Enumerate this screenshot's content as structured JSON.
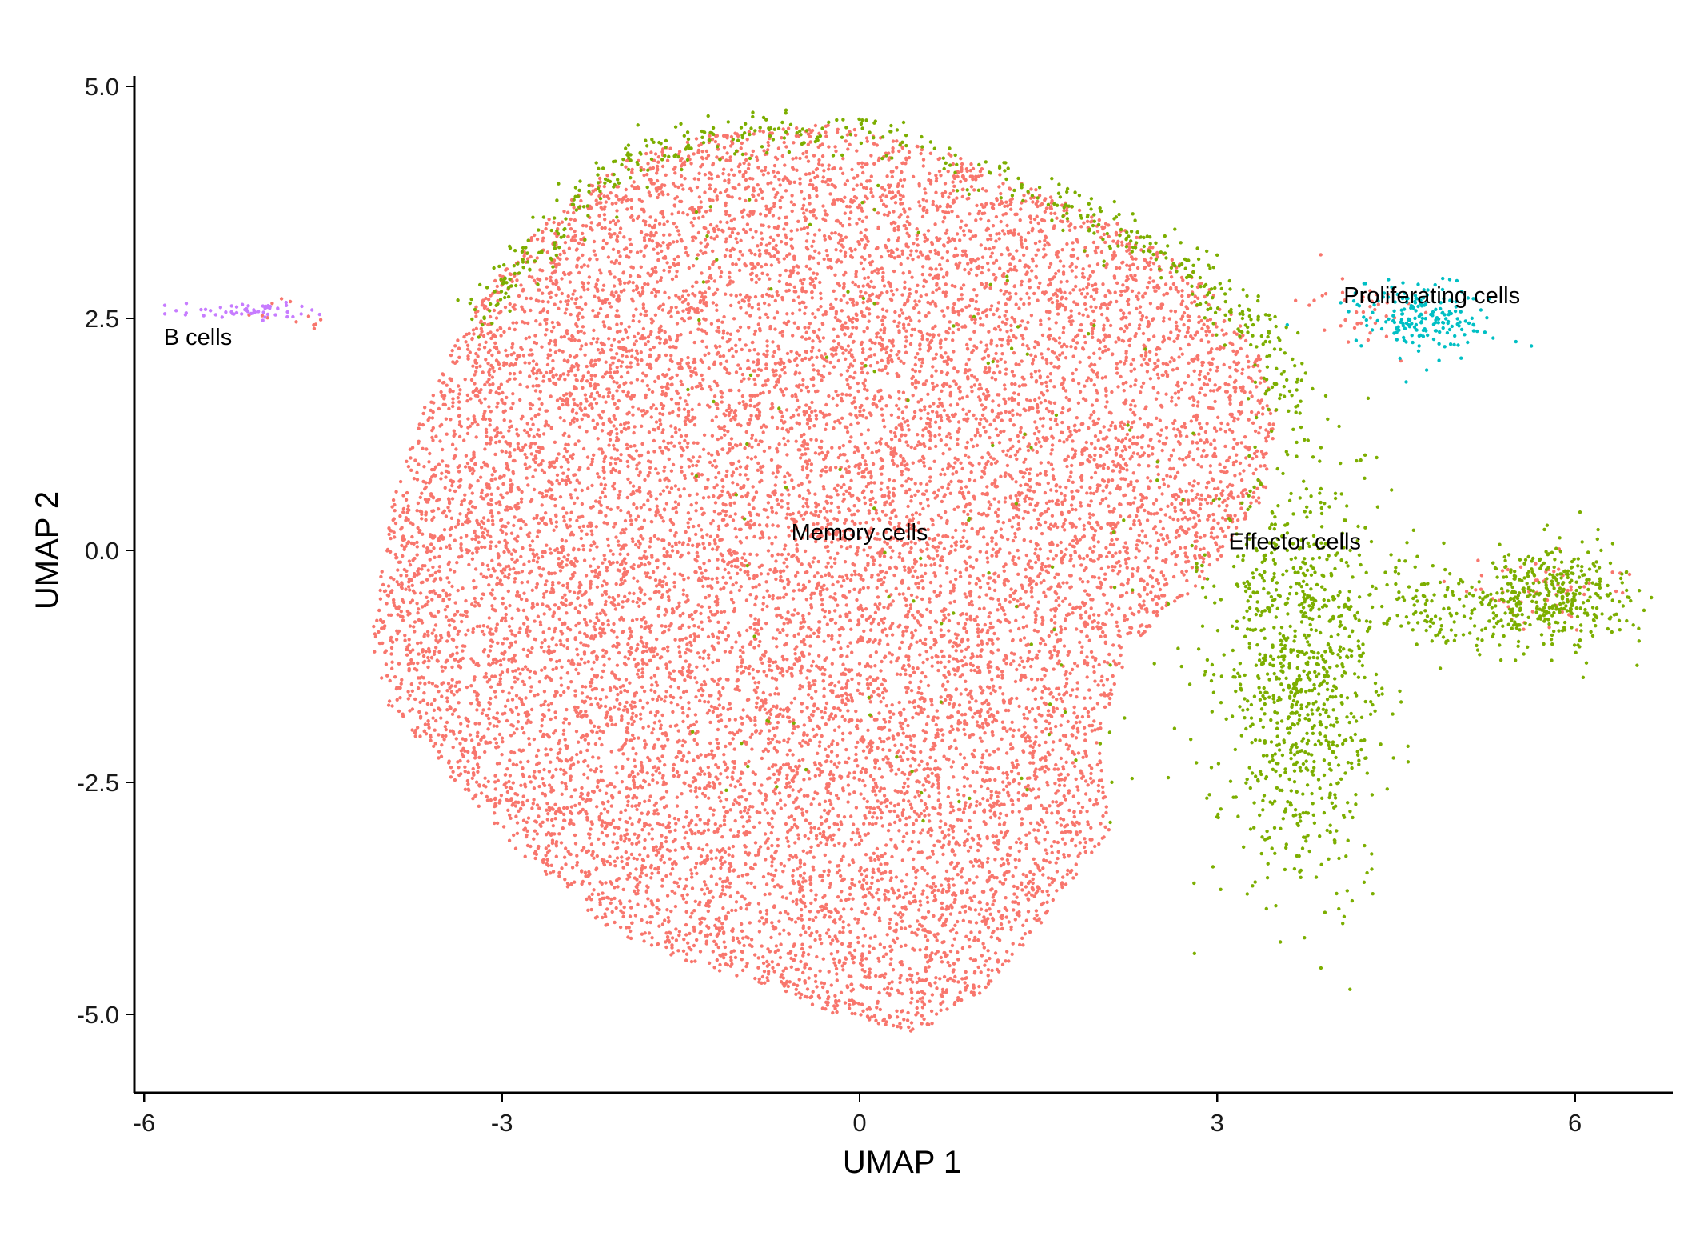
{
  "chart_data": {
    "type": "scatter",
    "title": "",
    "xlabel": "UMAP 1",
    "ylabel": "UMAP 2",
    "xlim": [
      -6.1,
      6.8
    ],
    "ylim": [
      -5.8,
      5.2
    ],
    "x_ticks": [
      -6,
      -3,
      0,
      3,
      6
    ],
    "x_tick_labels": [
      "-6",
      "-3",
      "0",
      "3",
      "6"
    ],
    "y_ticks": [
      5.0,
      2.5,
      0.0,
      -2.5,
      -5.0
    ],
    "y_tick_labels": [
      "5.0",
      "2.5",
      "0.0",
      "-2.5",
      "-5.0"
    ],
    "grid": false,
    "legend": "none",
    "series": [
      {
        "name": "Memory cells",
        "color": "#F8766D",
        "label_position": [
          0.0,
          0.2
        ],
        "approx_points": 14000,
        "shape_outline": [
          [
            -4.1,
            -1.0
          ],
          [
            -3.9,
            0.7
          ],
          [
            -3.6,
            1.7
          ],
          [
            -3.2,
            2.7
          ],
          [
            -2.6,
            3.6
          ],
          [
            -2.0,
            4.2
          ],
          [
            -1.2,
            4.5
          ],
          [
            -0.3,
            4.6
          ],
          [
            0.5,
            4.4
          ],
          [
            1.3,
            4.0
          ],
          [
            2.2,
            3.5
          ],
          [
            2.8,
            3.0
          ],
          [
            3.3,
            2.3
          ],
          [
            3.5,
            1.5
          ],
          [
            3.4,
            0.6
          ],
          [
            2.9,
            -0.3
          ],
          [
            2.3,
            -1.0
          ],
          [
            2.0,
            -2.0
          ],
          [
            2.1,
            -3.0
          ],
          [
            1.6,
            -3.9
          ],
          [
            1.1,
            -4.7
          ],
          [
            0.5,
            -5.2
          ],
          [
            -0.2,
            -5.0
          ],
          [
            -1.0,
            -4.6
          ],
          [
            -2.0,
            -4.2
          ],
          [
            -2.9,
            -3.2
          ],
          [
            -3.6,
            -2.2
          ],
          [
            -4.0,
            -1.6
          ]
        ]
      },
      {
        "name": "Effector cells",
        "color": "#7CAE00",
        "label_position": [
          3.65,
          0.1
        ],
        "approx_points": 1900,
        "regions": [
          {
            "desc": "rim",
            "outline": [
              [
                -3.2,
                2.5
              ],
              [
                -2.7,
                3.3
              ],
              [
                -2.0,
                4.2
              ],
              [
                -1.0,
                4.5
              ],
              [
                0.0,
                4.5
              ],
              [
                1.2,
                4.0
              ],
              [
                2.2,
                3.4
              ],
              [
                2.9,
                2.9
              ],
              [
                3.4,
                2.3
              ],
              [
                3.6,
                1.3
              ]
            ]
          },
          {
            "center": [
              3.7,
              -1.3
            ],
            "spread": [
              0.35,
              1.1
            ],
            "points": 950
          },
          {
            "center": [
              5.8,
              -0.5
            ],
            "spread": [
              0.35,
              0.28
            ],
            "points": 380
          },
          {
            "center": [
              4.9,
              -0.7
            ],
            "spread": [
              0.4,
              0.3
            ],
            "points": 120
          }
        ]
      },
      {
        "name": "Proliferating cells",
        "color": "#00BFC4",
        "label_position": [
          4.8,
          2.75
        ],
        "approx_points": 190,
        "center": [
          4.7,
          2.5
        ],
        "spread": [
          0.3,
          0.2
        ]
      },
      {
        "name": "B cells",
        "color": "#C77CFF",
        "label_position": [
          -5.55,
          2.3
        ],
        "approx_points": 55,
        "center": [
          -5.15,
          2.58
        ],
        "spread": [
          0.28,
          0.05
        ]
      }
    ]
  }
}
